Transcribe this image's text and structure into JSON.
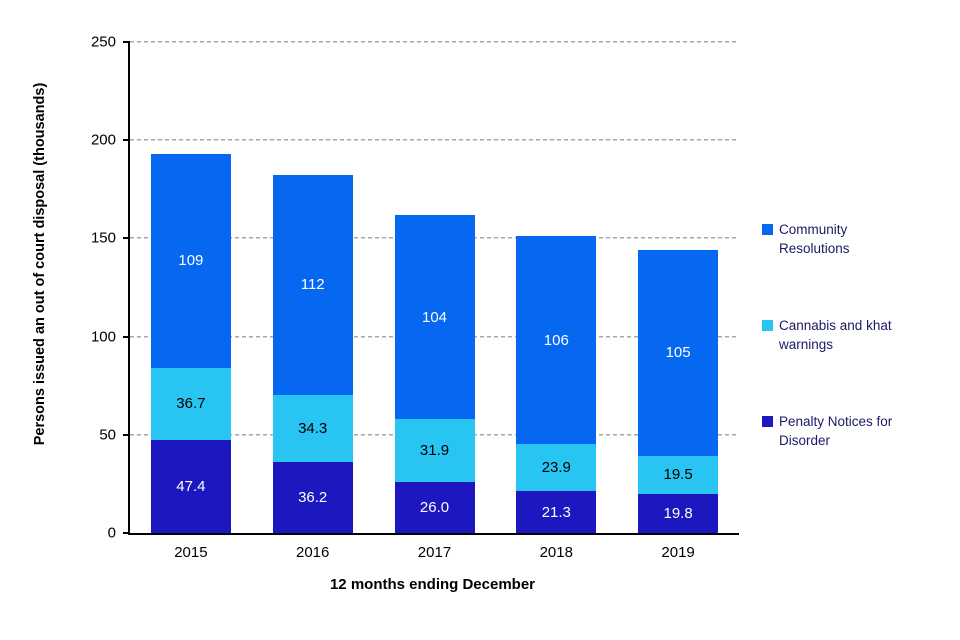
{
  "chart_data": {
    "type": "bar",
    "stacked": true,
    "title": "",
    "xlabel": "12 months ending December",
    "ylabel": "Persons issued an out of court disposal (thousands)",
    "categories": [
      "2015",
      "2016",
      "2017",
      "2018",
      "2019"
    ],
    "series": [
      {
        "name": "Penalty Notices for Disorder",
        "values": [
          47.4,
          36.2,
          26.0,
          21.3,
          19.8
        ],
        "labels": [
          "47.4",
          "36.2",
          "26.0",
          "21.3",
          "19.8"
        ],
        "color": "#1C17BE",
        "label_color": "#FFFFFF"
      },
      {
        "name": "Cannabis and khat warnings",
        "values": [
          36.7,
          34.3,
          31.9,
          23.9,
          19.5
        ],
        "labels": [
          "36.7",
          "34.3",
          "31.9",
          "23.9",
          "19.5"
        ],
        "color": "#29C5F2",
        "label_color": "#000000"
      },
      {
        "name": "Community Resolutions",
        "values": [
          109,
          112,
          104,
          106,
          105
        ],
        "labels": [
          "109",
          "112",
          "104",
          "106",
          "105"
        ],
        "color": "#0667F0",
        "label_color": "#FFFFFF"
      }
    ],
    "ylim": [
      0,
      250
    ],
    "yticks": [
      0,
      50,
      100,
      150,
      200,
      250
    ],
    "grid": "horizontal-dashed",
    "gridline_color": "#A8A8A8",
    "axis_color": "#000000",
    "legend_position": "right",
    "legend_text_color": "#1A1A66",
    "legend": [
      {
        "label": "Community Resolutions",
        "color": "#0667F0"
      },
      {
        "label": "Cannabis and khat warnings",
        "color": "#29C5F2"
      },
      {
        "label": "Penalty Notices for Disorder",
        "color": "#1C17BE"
      }
    ]
  }
}
